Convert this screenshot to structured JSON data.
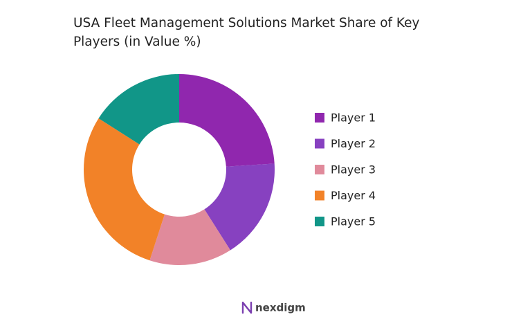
{
  "chart_data": {
    "type": "donut",
    "title": "USA Fleet Management Solutions Market Share of Key Players (in Value %)",
    "categories": [
      "Player 1",
      "Player 2",
      "Player 3",
      "Player 4",
      "Player 5"
    ],
    "values": [
      24,
      17,
      14,
      29,
      16
    ],
    "colors": [
      "#9027ae",
      "#8741c0",
      "#e08a9b",
      "#f28228",
      "#119688"
    ],
    "legend": "right"
  },
  "logo": "nexdigm"
}
